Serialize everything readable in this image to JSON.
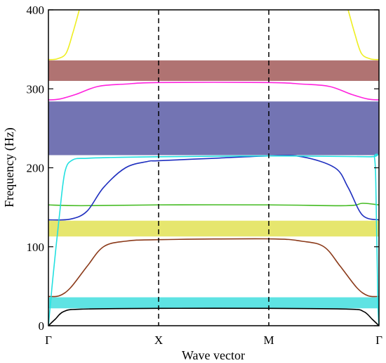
{
  "chart_data": {
    "type": "line",
    "title": "",
    "xlabel": "Wave vector",
    "ylabel": "Frequency (Hz)",
    "ylim": [
      0,
      400
    ],
    "xlim": [
      0,
      3
    ],
    "x_ticks": [
      {
        "pos": 0,
        "label": "Γ"
      },
      {
        "pos": 1,
        "label": "X"
      },
      {
        "pos": 2,
        "label": "M"
      },
      {
        "pos": 3,
        "label": "Γ"
      }
    ],
    "y_ticks": [
      0,
      100,
      200,
      300,
      400
    ],
    "dividers": [
      1,
      2
    ],
    "grid": false,
    "band_gaps": [
      {
        "low": 22,
        "high": 36,
        "color": "#5ee3e3"
      },
      {
        "low": 113,
        "high": 133,
        "color": "#e6e66e"
      },
      {
        "low": 216,
        "high": 284,
        "color": "#7374b3"
      },
      {
        "low": 310,
        "high": 336,
        "color": "#b07372"
      }
    ],
    "series": [
      {
        "color": "#000000",
        "x": [
          0,
          0.06,
          0.14,
          0.3,
          1.0,
          2.0,
          2.72,
          2.86,
          2.94,
          3.0
        ],
        "values": [
          0,
          8,
          18,
          21,
          22,
          22,
          21,
          18,
          8,
          0
        ]
      },
      {
        "color": "#8b3a1a",
        "x": [
          0,
          0.1,
          0.2,
          0.35,
          0.5,
          0.7,
          1.0,
          2.0,
          2.3,
          2.5,
          2.65,
          2.8,
          2.9,
          3.0
        ],
        "values": [
          37,
          38,
          48,
          75,
          100,
          107,
          109,
          110,
          107,
          100,
          75,
          48,
          38,
          37
        ]
      },
      {
        "color": "#44bb22",
        "x": [
          0,
          0.3,
          1.0,
          2.0,
          2.7,
          2.85,
          3.0
        ],
        "values": [
          153,
          152,
          153,
          153,
          152,
          155,
          153
        ]
      },
      {
        "color": "#1f2fbf",
        "x": [
          0,
          0.2,
          0.35,
          0.5,
          0.7,
          0.9,
          1.0,
          1.5,
          2.0,
          2.3,
          2.6,
          2.72,
          2.85,
          3.0
        ],
        "values": [
          134,
          135,
          145,
          175,
          200,
          208,
          209,
          212,
          215,
          214,
          200,
          175,
          140,
          134
        ]
      },
      {
        "color": "#22e0e0",
        "x": [
          0,
          0.04,
          0.1,
          0.15,
          0.22,
          0.35,
          0.55,
          1.0,
          2.0,
          2.9,
          2.96,
          2.975,
          2.99,
          3.0
        ],
        "values": [
          0,
          60,
          140,
          195,
          210,
          212,
          213,
          214,
          215,
          214,
          212,
          150,
          30,
          0
        ]
      },
      {
        "color": "#ff22dd",
        "x": [
          0,
          0.1,
          0.25,
          0.45,
          0.7,
          1.0,
          2.0,
          2.3,
          2.55,
          2.75,
          2.9,
          3.0
        ],
        "values": [
          286,
          287,
          293,
          303,
          306,
          308,
          308,
          306,
          303,
          293,
          287,
          286
        ]
      },
      {
        "color": "#eeee22",
        "x": [
          0,
          0.08,
          0.16,
          0.22,
          0.28
        ],
        "values": [
          337,
          338,
          345,
          370,
          400
        ]
      },
      {
        "color": "#eeee22",
        "x": [
          2.72,
          2.78,
          2.84,
          2.92,
          3.0
        ],
        "values": [
          400,
          370,
          345,
          338,
          337
        ]
      }
    ]
  }
}
